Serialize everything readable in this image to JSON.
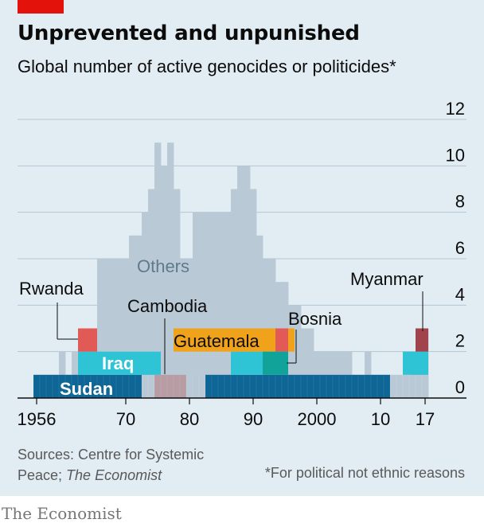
{
  "title": "Unprevented and unpunished",
  "subtitle": "Global number of active genocides or politicides*",
  "sources": {
    "prefix": "Sources: Centre for Systemic Peace; ",
    "italic": "The Economist"
  },
  "footnote": "*For political not ethnic reasons",
  "brand": "The Economist",
  "colors": {
    "background": "#e2ecf3",
    "gridline": "#b3c6d4",
    "others": "#b9cad6",
    "sudan": "#0e6696",
    "iraq": "#2ec4d6",
    "guatemala": "#f0a21a",
    "cambodia": "#b79ca4",
    "rwanda": "#e25a55",
    "myanmar": "#a1434c",
    "bosnia": "#11a39a",
    "accent": "#e3120b"
  },
  "chart_data": {
    "type": "area",
    "title": "Unprevented and unpunished",
    "subtitle": "Global number of active genocides or politicides*",
    "x_range": [
      1956,
      2017
    ],
    "ylim": [
      0,
      12
    ],
    "y_ticks": [
      0,
      2,
      4,
      6,
      8,
      10,
      12
    ],
    "y_axis_position": "right",
    "x_ticks": [
      "1956",
      "70",
      "80",
      "90",
      "2000",
      "10",
      "17"
    ],
    "grid": true,
    "years": [
      1956,
      1957,
      1958,
      1959,
      1960,
      1961,
      1962,
      1963,
      1964,
      1965,
      1966,
      1967,
      1968,
      1969,
      1970,
      1971,
      1972,
      1973,
      1974,
      1975,
      1976,
      1977,
      1978,
      1979,
      1980,
      1981,
      1982,
      1983,
      1984,
      1985,
      1986,
      1987,
      1988,
      1989,
      1990,
      1991,
      1992,
      1993,
      1994,
      1995,
      1996,
      1997,
      1998,
      1999,
      2000,
      2001,
      2002,
      2003,
      2004,
      2005,
      2006,
      2007,
      2008,
      2009,
      2010,
      2011,
      2012,
      2013,
      2014,
      2015,
      2016,
      2017
    ],
    "total": [
      1,
      1,
      1,
      1,
      2,
      1,
      2,
      3,
      3,
      3,
      6,
      6,
      6,
      6,
      6,
      7,
      7,
      8,
      9,
      11,
      10,
      11,
      9,
      6,
      6,
      8,
      8,
      8,
      8,
      8,
      8,
      9,
      10,
      10,
      9,
      7,
      6,
      6,
      5,
      5,
      4,
      4,
      3,
      3,
      2,
      2,
      2,
      2,
      2,
      2,
      1,
      1,
      2,
      1,
      1,
      1,
      1,
      1,
      1,
      2,
      2,
      3
    ],
    "highlighted_series": [
      {
        "name": "Sudan",
        "segments": [
          [
            1956,
            1972
          ],
          [
            1983,
            2011
          ]
        ],
        "level": 0
      },
      {
        "name": "Iraq",
        "segments": [
          [
            1963,
            1975
          ],
          [
            1987,
            1991
          ],
          [
            2014,
            2017
          ]
        ],
        "level": 1
      },
      {
        "name": "Guatemala",
        "segments": [
          [
            1978,
            1996
          ]
        ],
        "level": 2
      },
      {
        "name": "Cambodia",
        "segments": [
          [
            1975,
            1979
          ]
        ],
        "level": 0
      },
      {
        "name": "Rwanda",
        "segments": [
          [
            1963,
            1965
          ],
          [
            1994,
            1995
          ]
        ],
        "level": 2
      },
      {
        "name": "Myanmar",
        "segments": [
          [
            2016,
            2017
          ]
        ],
        "level": 2
      },
      {
        "name": "Bosnia",
        "segments": [
          [
            1992,
            1995
          ]
        ],
        "level": 1
      },
      {
        "name": "Others",
        "segments": [],
        "level": 3
      }
    ],
    "annotations": [
      "Others",
      "Rwanda",
      "Cambodia",
      "Guatemala",
      "Bosnia",
      "Myanmar",
      "Iraq",
      "Sudan"
    ],
    "note": "*For political not ethnic reasons"
  }
}
